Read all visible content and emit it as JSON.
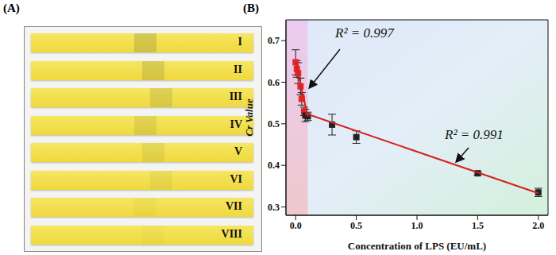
{
  "panel_a": {
    "label": "(A)",
    "strips": [
      "I",
      "II",
      "III",
      "IV",
      "V",
      "VI",
      "VII",
      "VIII"
    ]
  },
  "chart_data": {
    "type": "scatter",
    "title": "(B)",
    "x_label": "Concentration of LPS (EU/mL)",
    "y_label": "Cr Value",
    "annotations": [
      "R² = 0.997",
      "R² = 0.991"
    ],
    "xlim": [
      -0.08,
      2.08
    ],
    "xticks": [
      {
        "value": 0,
        "label": "0.0"
      },
      {
        "value": 0.5,
        "label": "0.5"
      },
      {
        "value": 1,
        "label": "1.0"
      },
      {
        "value": 1.5,
        "label": "1.5"
      },
      {
        "value": 2,
        "label": "2.0"
      }
    ],
    "ylim": [
      0.28,
      0.75
    ],
    "yticks": [
      0.3,
      0.4,
      0.5,
      0.6,
      0.7
    ],
    "series": [
      {
        "type": "scatter",
        "marker": "square",
        "color": "#e02828",
        "x": [
          0,
          0.01,
          0.02,
          0.04,
          0.05,
          0.07
        ],
        "values": [
          0.648,
          0.632,
          0.622,
          0.59,
          0.56,
          0.53
        ],
        "errors": [
          0.03,
          0.02,
          0.025,
          0.02,
          0.015,
          0.01
        ]
      },
      {
        "type": "scatter",
        "marker": "square",
        "color": "#222222",
        "x": [
          0.08,
          0.1,
          0.3,
          0.5,
          1.5,
          2
        ],
        "values": [
          0.52,
          0.518,
          0.498,
          0.468,
          0.381,
          0.335
        ],
        "errors": [
          0.015,
          0.01,
          0.025,
          0.015,
          0.004,
          0.01
        ]
      },
      {
        "type": "line",
        "color": "#d42020",
        "x": [
          0,
          0.1
        ],
        "values": [
          0.648,
          0.518
        ]
      },
      {
        "type": "line",
        "color": "#d42020",
        "x": [
          0.08,
          2
        ],
        "values": [
          0.525,
          0.333
        ]
      }
    ]
  }
}
